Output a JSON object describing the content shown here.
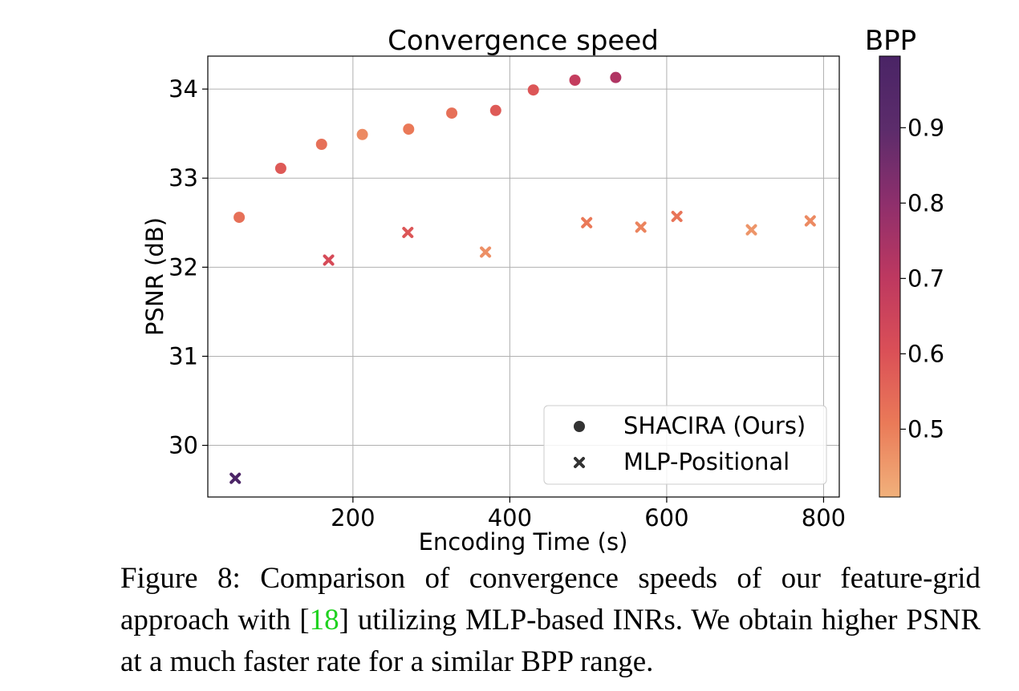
{
  "chart_data": {
    "type": "scatter",
    "title": "Convergence speed",
    "xlabel": "Encoding Time (s)",
    "ylabel": "PSNR (dB)",
    "xlim": [
      15,
      820
    ],
    "ylim": [
      29.42,
      34.37
    ],
    "xticks": [
      "200",
      "400",
      "600",
      "800"
    ],
    "yticks": [
      "30",
      "31",
      "32",
      "33",
      "34"
    ],
    "grid": true,
    "legend_position": "lower-right",
    "colorbar": {
      "label": "BPP",
      "range": [
        0.41,
        0.995
      ],
      "ticks": [
        "0.5",
        "0.6",
        "0.7",
        "0.8",
        "0.9"
      ],
      "colormap": [
        "#f1b17b",
        "#ea7a58",
        "#da4f57",
        "#bd3860",
        "#8e2f6c",
        "#5c2c6b",
        "#4a2466"
      ]
    },
    "series": [
      {
        "name": "SHACIRA (Ours)",
        "marker": "circle",
        "points": [
          {
            "x": 55,
            "y": 32.56,
            "bpp": 0.53
          },
          {
            "x": 108,
            "y": 33.11,
            "bpp": 0.58
          },
          {
            "x": 160,
            "y": 33.38,
            "bpp": 0.53
          },
          {
            "x": 212,
            "y": 33.49,
            "bpp": 0.48
          },
          {
            "x": 271,
            "y": 33.55,
            "bpp": 0.51
          },
          {
            "x": 326,
            "y": 33.73,
            "bpp": 0.53
          },
          {
            "x": 382,
            "y": 33.76,
            "bpp": 0.58
          },
          {
            "x": 430,
            "y": 33.99,
            "bpp": 0.59
          },
          {
            "x": 483,
            "y": 34.1,
            "bpp": 0.68
          },
          {
            "x": 535,
            "y": 34.13,
            "bpp": 0.73
          }
        ]
      },
      {
        "name": "MLP-Positional",
        "marker": "x",
        "points": [
          {
            "x": 50,
            "y": 29.63,
            "bpp": 0.99
          },
          {
            "x": 169,
            "y": 32.08,
            "bpp": 0.62
          },
          {
            "x": 270,
            "y": 32.39,
            "bpp": 0.59
          },
          {
            "x": 369,
            "y": 32.17,
            "bpp": 0.47
          },
          {
            "x": 498,
            "y": 32.5,
            "bpp": 0.51
          },
          {
            "x": 567,
            "y": 32.45,
            "bpp": 0.49
          },
          {
            "x": 613,
            "y": 32.57,
            "bpp": 0.52
          },
          {
            "x": 708,
            "y": 32.42,
            "bpp": 0.46
          },
          {
            "x": 783,
            "y": 32.52,
            "bpp": 0.48
          }
        ]
      }
    ]
  },
  "caption": {
    "prefix": "Figure 8: Comparison of convergence speeds of our feature-grid approach with [",
    "cite": "18",
    "suffix": "] utilizing MLP-based INRs. We obtain higher PSNR at a much faster rate for a similar BPP range."
  }
}
